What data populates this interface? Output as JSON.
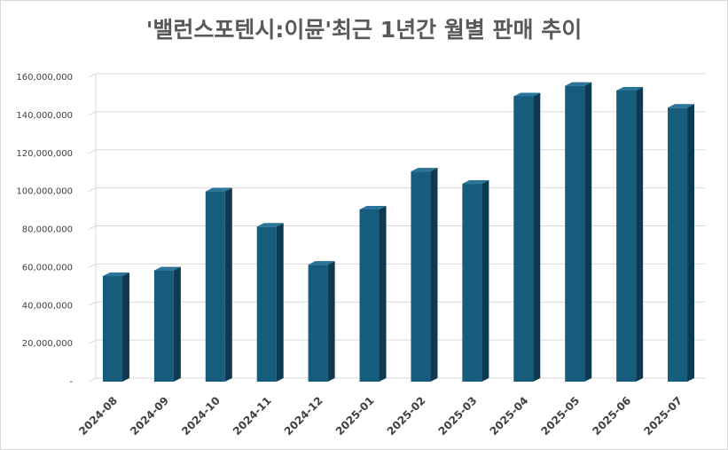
{
  "chart_data": {
    "type": "bar",
    "title": "'밸런스포텐시:이뮨'최근 1년간 월별 판매 추이",
    "categories": [
      "2024-08",
      "2024-09",
      "2024-10",
      "2024-11",
      "2024-12",
      "2025-01",
      "2025-02",
      "2025-03",
      "2025-04",
      "2025-05",
      "2025-06",
      "2025-07"
    ],
    "series": [
      {
        "values": [
          55500000,
          58500000,
          100000000,
          81500000,
          61500000,
          90500000,
          110500000,
          104000000,
          150000000,
          155500000,
          153000000,
          144000000
        ]
      }
    ],
    "ylim": [
      0,
      160000000
    ],
    "yticks": [
      0,
      20000000,
      40000000,
      60000000,
      80000000,
      100000000,
      120000000,
      140000000,
      160000000
    ],
    "ytick_labels": [
      "-",
      "20,000,000",
      "40,000,000",
      "60,000,000",
      "80,000,000",
      "100,000,000",
      "120,000,000",
      "140,000,000",
      "160,000,000"
    ],
    "xlabel": "",
    "ylabel": "",
    "grid": true,
    "colors": {
      "bar_front": "#165c7d",
      "bar_side": "#0d3a50",
      "bar_top": "#2a7599",
      "grid": "#d9d9d9"
    }
  }
}
